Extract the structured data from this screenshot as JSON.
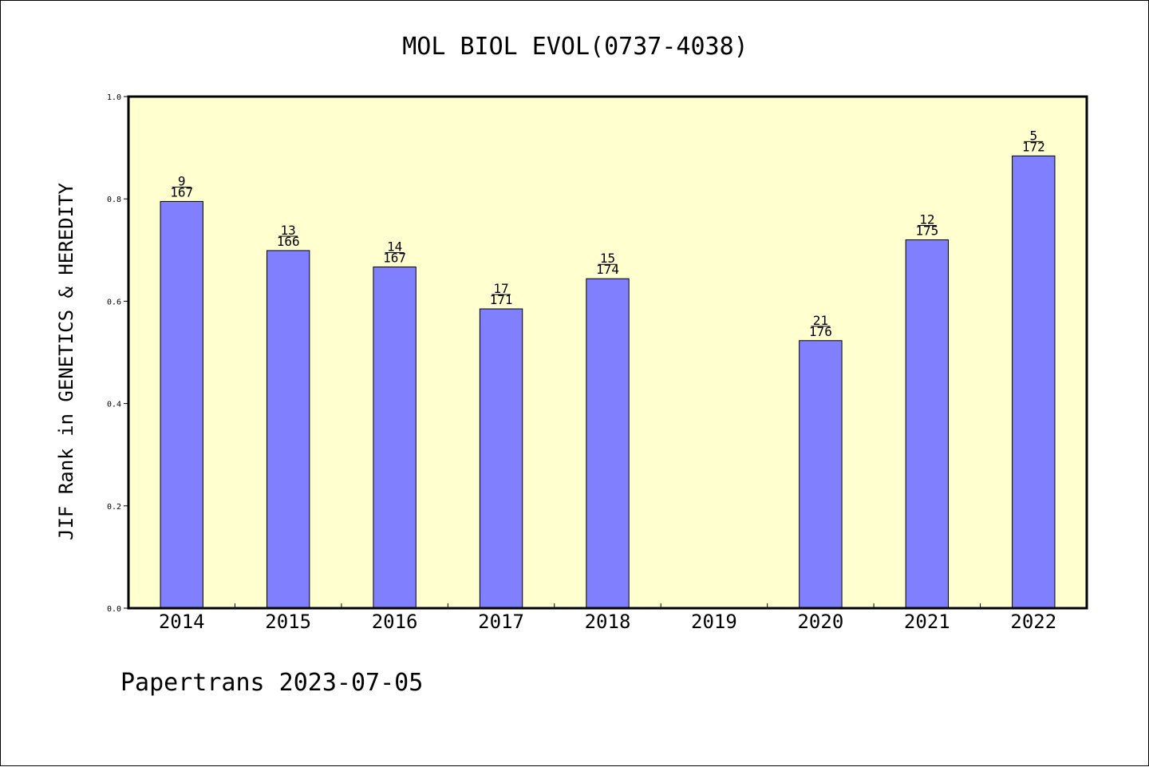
{
  "chart_data": {
    "type": "bar",
    "title": "MOL BIOL EVOL(0737-4038)",
    "ylabel": "JIF Rank in GENETICS & HEREDITY",
    "xlabel": "",
    "ylim": [
      0,
      1.0
    ],
    "yticks": [
      "0.0",
      "0.2",
      "0.4",
      "0.6",
      "0.8",
      "1.0"
    ],
    "ytick_values": [
      0.0,
      0.2,
      0.4,
      0.6,
      0.8,
      1.0
    ],
    "categories": [
      "2014",
      "2015",
      "2016",
      "2017",
      "2018",
      "2019",
      "2020",
      "2021",
      "2022"
    ],
    "values": [
      0.795,
      0.699,
      0.667,
      0.585,
      0.644,
      null,
      0.523,
      0.72,
      0.884
    ],
    "rank": [
      "9",
      "13",
      "14",
      "17",
      "15",
      "",
      "21",
      "12",
      "5"
    ],
    "total": [
      "167",
      "166",
      "167",
      "171",
      "174",
      "",
      "176",
      "175",
      "172"
    ],
    "bar_color": "#8080ff",
    "plot_background": "#ffffd0",
    "grid": false,
    "legend": "none"
  },
  "footer": "Papertrans 2023-07-05"
}
